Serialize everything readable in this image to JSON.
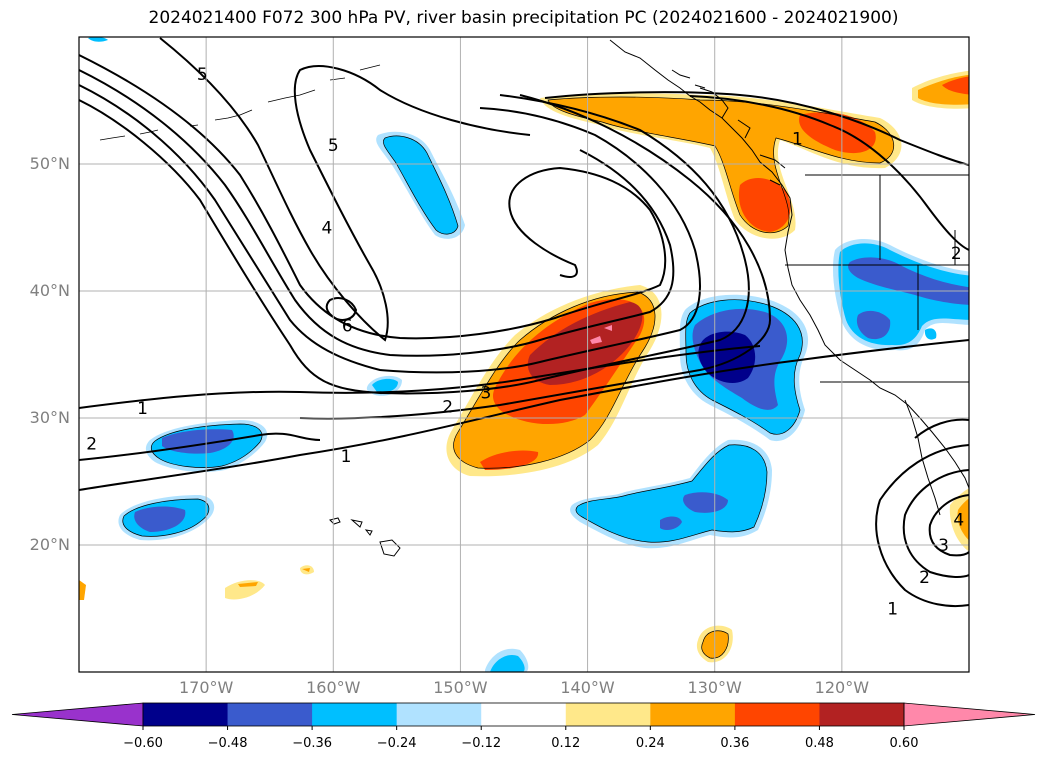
{
  "title": "2024021400 F072 300 hPa PV, river basin precipitation PC (2024021600 - 2024021900)",
  "map": {
    "lon_range": [
      -180,
      -110
    ],
    "lat_range": [
      10,
      60
    ],
    "lat_ticks": [
      {
        "value": 50,
        "label": "50°N"
      },
      {
        "value": 40,
        "label": "40°N"
      },
      {
        "value": 30,
        "label": "30°N"
      },
      {
        "value": 20,
        "label": "20°N"
      }
    ],
    "lon_ticks": [
      {
        "value": -170,
        "label": "170°W"
      },
      {
        "value": -160,
        "label": "160°W"
      },
      {
        "value": -150,
        "label": "150°W"
      },
      {
        "value": -140,
        "label": "140°W"
      },
      {
        "value": -130,
        "label": "130°W"
      },
      {
        "value": -120,
        "label": "120°W"
      }
    ],
    "contour_labels": [
      {
        "text": "5",
        "lon": -170.3,
        "lat": 57.1
      },
      {
        "text": "5",
        "lon": -160,
        "lat": 51.5
      },
      {
        "text": "4",
        "lon": -160.5,
        "lat": 45
      },
      {
        "text": "6",
        "lon": -158.9,
        "lat": 37.3
      },
      {
        "text": "3",
        "lon": -148,
        "lat": 32
      },
      {
        "text": "2",
        "lon": -151,
        "lat": 30.9
      },
      {
        "text": "1",
        "lon": -175,
        "lat": 30.8
      },
      {
        "text": "2",
        "lon": -179,
        "lat": 28
      },
      {
        "text": "1",
        "lon": -159,
        "lat": 27
      },
      {
        "text": "1",
        "lon": -123.5,
        "lat": 52
      },
      {
        "text": "2",
        "lon": -111,
        "lat": 43
      },
      {
        "text": "4",
        "lon": -110.8,
        "lat": 22
      },
      {
        "text": "3",
        "lon": -112,
        "lat": 20
      },
      {
        "text": "2",
        "lon": -113.5,
        "lat": 17.5
      },
      {
        "text": "1",
        "lon": -116,
        "lat": 15
      }
    ]
  },
  "colorbar": {
    "levels": [
      -0.6,
      -0.48,
      -0.36,
      -0.24,
      -0.12,
      0.12,
      0.24,
      0.36,
      0.48,
      0.6
    ],
    "tick_labels": [
      "−0.60",
      "−0.48",
      "−0.36",
      "−0.24",
      "−0.12",
      "0.12",
      "0.24",
      "0.36",
      "0.48",
      "0.60"
    ],
    "colors": [
      "#9932cc",
      "#00008b",
      "#3a5bcd",
      "#00bfff",
      "#b0e2ff",
      "#ffffff",
      "#ffe88a",
      "#ffa500",
      "#ff4500",
      "#b22222",
      "#ff88aa"
    ]
  }
}
